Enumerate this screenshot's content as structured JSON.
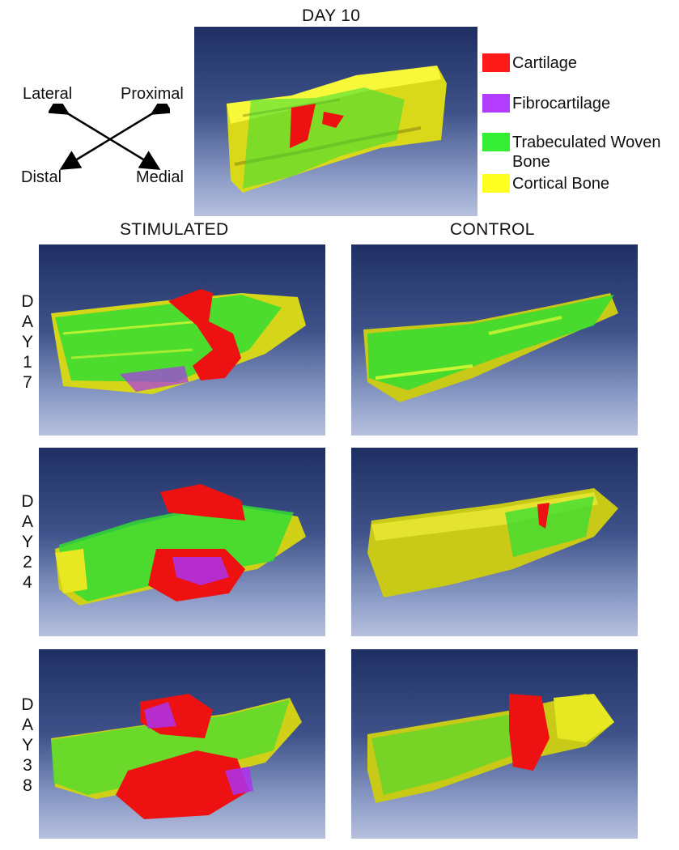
{
  "title": "DAY 10",
  "columns": {
    "stimulated": "STIMULATED",
    "control": "CONTROL"
  },
  "orientation": {
    "lateral": "Lateral",
    "proximal": "Proximal",
    "distal": "Distal",
    "medial": "Medial"
  },
  "legend": [
    {
      "label": "Cartilage",
      "color": "#ff1a1a"
    },
    {
      "label": "Fibrocartilage",
      "color": "#b23cff"
    },
    {
      "label": "Trabeculated Woven\n Bone",
      "color": "#33ee33"
    },
    {
      "label": "Cortical Bone",
      "color": "#ffff22"
    }
  ],
  "rows": [
    {
      "day": [
        "D",
        "A",
        "Y",
        "1",
        "7"
      ]
    },
    {
      "day": [
        "D",
        "A",
        "Y",
        "2",
        "4"
      ]
    },
    {
      "day": [
        "D",
        "A",
        "Y",
        "3",
        "8"
      ]
    }
  ]
}
